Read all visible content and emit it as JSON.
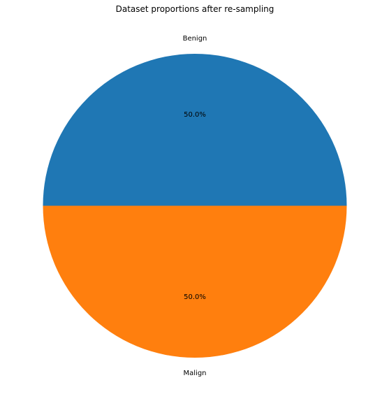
{
  "chart_data": {
    "type": "pie",
    "title": "Dataset proportions after re-sampling",
    "slices": [
      {
        "label": "Benign",
        "value": 50.0,
        "pct_label": "50.0%",
        "color": "#1f77b4"
      },
      {
        "label": "Malign",
        "value": 50.0,
        "pct_label": "50.0%",
        "color": "#ff7f0e"
      }
    ],
    "start_angle_deg": 0,
    "direction": "counterclockwise",
    "legend": "none"
  }
}
